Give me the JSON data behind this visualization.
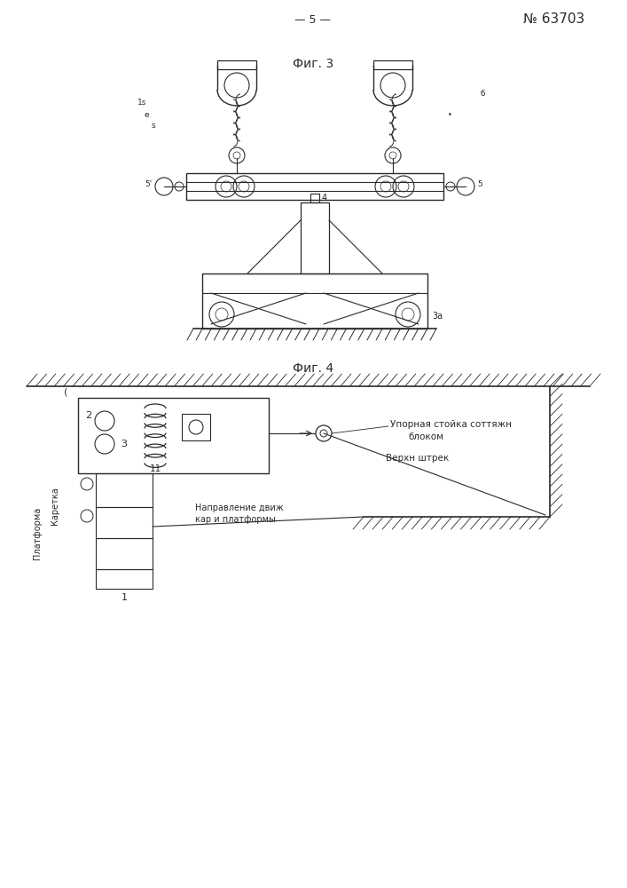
{
  "bg_color": "#ffffff",
  "lc": "#2a2a2a",
  "fig_width": 7.07,
  "fig_height": 10.0,
  "header_text": "— 5 —",
  "patent_text": "№ 63703",
  "fig3_label": "Фиг. 3",
  "fig4_label": "Фиг. 4",
  "label_upornaya": "Упорная стойка соттяжн",
  "label_blokom": "блоком",
  "label_verkhn": "Верхн штрек",
  "label_napravlenie1": "Направление движ",
  "label_napravlenie2": "кар и платформы",
  "label_platforma": "Платформа",
  "label_karetka": "Каретка"
}
